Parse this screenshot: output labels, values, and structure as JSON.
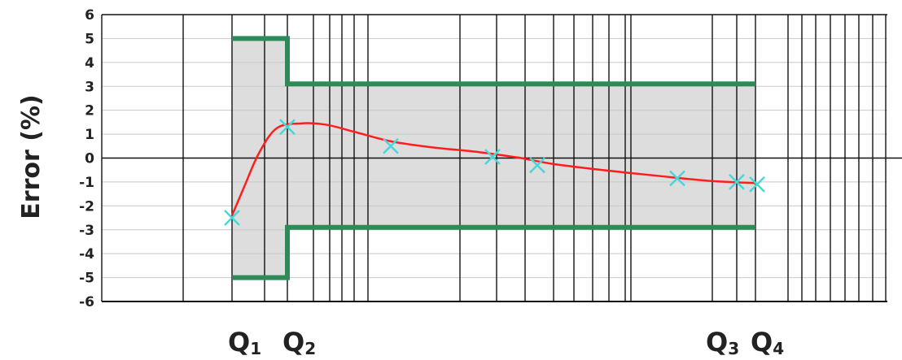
{
  "chart_data": {
    "type": "line",
    "ylabel": "Error (%)",
    "ylim": [
      -6,
      6
    ],
    "yticks": [
      6,
      5,
      4,
      3,
      2,
      1,
      0,
      -1,
      -2,
      -3,
      -4,
      -5,
      -6
    ],
    "x_scale": "log",
    "grid": true,
    "flow_markers": [
      {
        "id": "Q1",
        "main": "Q",
        "sub": "1"
      },
      {
        "id": "Q2",
        "main": "Q",
        "sub": "2"
      },
      {
        "id": "Q3",
        "main": "Q",
        "sub": "3"
      },
      {
        "id": "Q4",
        "main": "Q",
        "sub": "4"
      }
    ],
    "limits": [
      {
        "zone": "Q1-Q2",
        "upper": 5,
        "lower": -5
      },
      {
        "zone": "Q2-Q4",
        "upper": 3.1,
        "lower": -2.9
      }
    ],
    "points": [
      {
        "y": -2.5
      },
      {
        "y": 1.3
      },
      {
        "y": 0.5
      },
      {
        "y": 0.05
      },
      {
        "y": -0.3
      },
      {
        "y": -0.85
      },
      {
        "y": -1.0
      },
      {
        "y": -1.1
      }
    ],
    "curve": [
      -2.4,
      -1.2,
      0.2,
      1.25,
      1.45,
      1.4,
      1.1,
      0.7,
      0.45,
      0.3,
      0.15,
      0.0,
      -0.25,
      -0.5,
      -0.75,
      -0.95,
      -1.05
    ],
    "colors": {
      "limit": "#2e8b57",
      "curve": "#ff1e1e",
      "marker": "#46d8d8",
      "band": "#dddddd",
      "grid": "#111111"
    }
  }
}
